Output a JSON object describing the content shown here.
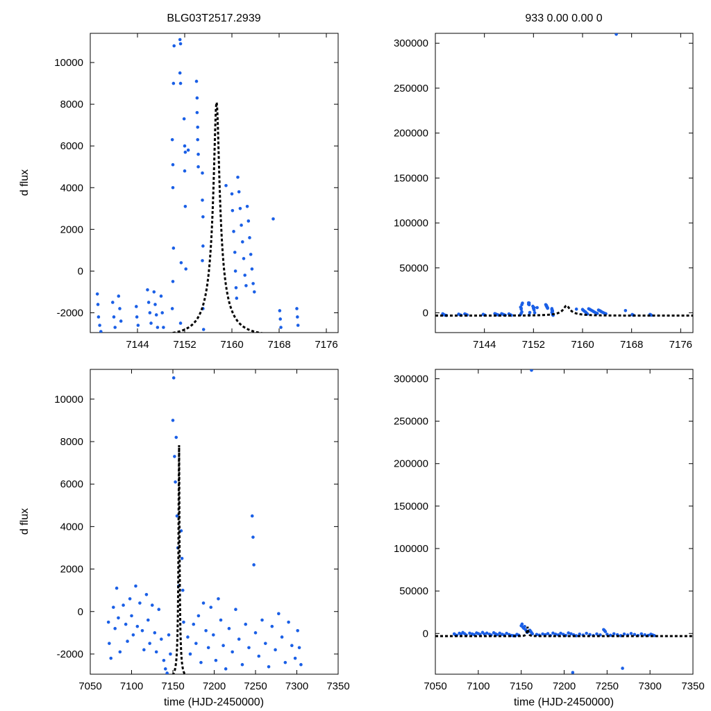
{
  "chart_data": [
    {
      "type": "scatter",
      "panel": "top-left",
      "title": "BLG03T2517.2939",
      "xlabel": "",
      "ylabel": "d flux",
      "xlim": [
        7136,
        7178
      ],
      "ylim": [
        -2950,
        11400
      ],
      "xticks": [
        7144,
        7152,
        7160,
        7168,
        7176
      ],
      "yticks": [
        -2000,
        0,
        2000,
        4000,
        6000,
        8000,
        10000
      ],
      "model": {
        "t0": 7157.4,
        "u0": 0.105,
        "tE": 4.5,
        "F0": 8100,
        "base": -3100
      },
      "point_color": "#1a5fe6",
      "model_color": "#000000"
    },
    {
      "type": "scatter",
      "panel": "top-right",
      "title": "933   0.00   0.00   0",
      "xlabel": "",
      "ylabel": "",
      "xlim": [
        7136,
        7178
      ],
      "ylim": [
        -22000,
        311000
      ],
      "xticks": [
        7144,
        7152,
        7160,
        7168,
        7176
      ],
      "yticks": [
        0,
        50000,
        100000,
        150000,
        200000,
        250000,
        300000
      ],
      "model": {
        "t0": 7157.4,
        "u0": 0.105,
        "tE": 4.5,
        "F0": 8100,
        "base": -3100
      },
      "point_color": "#1a5fe6",
      "model_color": "#000000"
    },
    {
      "type": "scatter",
      "panel": "bottom-left",
      "title": "",
      "xlabel": "time (HJD-2450000)",
      "ylabel": "d flux",
      "xlim": [
        7050,
        7350
      ],
      "ylim": [
        -2950,
        11400
      ],
      "xticks": [
        7050,
        7100,
        7150,
        7200,
        7250,
        7300,
        7350
      ],
      "yticks": [
        -2000,
        0,
        2000,
        4000,
        6000,
        8000,
        10000
      ],
      "model": {
        "t0": 7157.4,
        "u0": 0.105,
        "tE": 4.5,
        "F0": 8100,
        "base": -3100
      },
      "point_color": "#1a5fe6",
      "model_color": "#000000"
    },
    {
      "type": "scatter",
      "panel": "bottom-right",
      "title": "",
      "xlabel": "time (HJD-2450000)",
      "ylabel": "",
      "xlim": [
        7050,
        7350
      ],
      "ylim": [
        -48000,
        311000
      ],
      "xticks": [
        7050,
        7100,
        7150,
        7200,
        7250,
        7300,
        7350
      ],
      "yticks": [
        0,
        50000,
        100000,
        150000,
        200000,
        250000,
        300000
      ],
      "model": {
        "t0": 7157.4,
        "u0": 0.105,
        "tE": 4.5,
        "F0": 8100,
        "base": -3100
      },
      "point_color": "#1a5fe6",
      "model_color": "#000000"
    }
  ],
  "observations_zoom": [
    [
      7137.2,
      -1100
    ],
    [
      7137.3,
      -1600
    ],
    [
      7137.4,
      -2200
    ],
    [
      7137.6,
      -2600
    ],
    [
      7137.8,
      -2900
    ],
    [
      7139.8,
      -1500
    ],
    [
      7140.0,
      -2200
    ],
    [
      7140.2,
      -2700
    ],
    [
      7140.8,
      -1200
    ],
    [
      7141.0,
      -1800
    ],
    [
      7141.2,
      -2400
    ],
    [
      7143.8,
      -1700
    ],
    [
      7143.9,
      -2200
    ],
    [
      7144.1,
      -2600
    ],
    [
      7145.7,
      -900
    ],
    [
      7145.9,
      -1500
    ],
    [
      7146.1,
      -2000
    ],
    [
      7146.3,
      -2500
    ],
    [
      7146.8,
      -1000
    ],
    [
      7147.0,
      -1600
    ],
    [
      7147.2,
      -2100
    ],
    [
      7147.4,
      -2700
    ],
    [
      7148.0,
      -1200
    ],
    [
      7148.2,
      -2000
    ],
    [
      7148.4,
      -2700
    ],
    [
      7149.9,
      6300
    ],
    [
      7150.0,
      5100
    ],
    [
      7150.0,
      4000
    ],
    [
      7150.1,
      9000
    ],
    [
      7150.2,
      10800
    ],
    [
      7150.1,
      1100
    ],
    [
      7150.0,
      -500
    ],
    [
      7149.9,
      -1800
    ],
    [
      7151.2,
      11100
    ],
    [
      7151.3,
      10900
    ],
    [
      7151.2,
      9500
    ],
    [
      7151.3,
      9000
    ],
    [
      7151.4,
      400
    ],
    [
      7151.3,
      -2500
    ],
    [
      7151.9,
      7300
    ],
    [
      7152.0,
      6000
    ],
    [
      7152.1,
      5700
    ],
    [
      7152.0,
      4800
    ],
    [
      7152.1,
      3100
    ],
    [
      7152.2,
      100
    ],
    [
      7152.6,
      5800
    ],
    [
      7154.1,
      8300
    ],
    [
      7154.1,
      7600
    ],
    [
      7154.2,
      6900
    ],
    [
      7154.2,
      6300
    ],
    [
      7154.3,
      5600
    ],
    [
      7154.3,
      5000
    ],
    [
      7154.0,
      9100
    ],
    [
      7155.0,
      4700
    ],
    [
      7155.0,
      3400
    ],
    [
      7155.1,
      2600
    ],
    [
      7155.1,
      1200
    ],
    [
      7155.1,
      -1800
    ],
    [
      7155.2,
      -2800
    ],
    [
      7155.0,
      500
    ],
    [
      7159.0,
      4100
    ],
    [
      7160.0,
      3700
    ],
    [
      7160.1,
      2900
    ],
    [
      7160.3,
      1900
    ],
    [
      7160.5,
      900
    ],
    [
      7160.6,
      0
    ],
    [
      7160.7,
      -800
    ],
    [
      7160.8,
      -1300
    ],
    [
      7161.0,
      4500
    ],
    [
      7161.2,
      3800
    ],
    [
      7161.4,
      3000
    ],
    [
      7161.6,
      2200
    ],
    [
      7161.8,
      1400
    ],
    [
      7162.0,
      600
    ],
    [
      7162.2,
      -200
    ],
    [
      7162.4,
      -700
    ],
    [
      7162.6,
      3100
    ],
    [
      7162.8,
      2400
    ],
    [
      7163.0,
      1600
    ],
    [
      7163.2,
      800
    ],
    [
      7163.4,
      100
    ],
    [
      7163.6,
      -600
    ],
    [
      7163.8,
      -1000
    ],
    [
      7167.0,
      2500
    ],
    [
      7168.1,
      -1900
    ],
    [
      7168.2,
      -2300
    ],
    [
      7168.3,
      -2700
    ],
    [
      7171.0,
      -1800
    ],
    [
      7171.1,
      -2200
    ],
    [
      7171.2,
      -2600
    ]
  ],
  "observations_full": [
    [
      7072,
      -500
    ],
    [
      7073,
      -1500
    ],
    [
      7075,
      -2200
    ],
    [
      7078,
      200
    ],
    [
      7080,
      -800
    ],
    [
      7082,
      1100
    ],
    [
      7084,
      -300
    ],
    [
      7086,
      -1900
    ],
    [
      7090,
      300
    ],
    [
      7093,
      -600
    ],
    [
      7095,
      -1400
    ],
    [
      7098,
      600
    ],
    [
      7100,
      -200
    ],
    [
      7102,
      -1100
    ],
    [
      7105,
      1200
    ],
    [
      7107,
      -700
    ],
    [
      7110,
      400
    ],
    [
      7113,
      -900
    ],
    [
      7115,
      -1800
    ],
    [
      7118,
      800
    ],
    [
      7120,
      -400
    ],
    [
      7122,
      -1500
    ],
    [
      7125,
      300
    ],
    [
      7128,
      -1000
    ],
    [
      7130,
      -1900
    ],
    [
      7133,
      100
    ],
    [
      7136,
      -1300
    ],
    [
      7139,
      -2300
    ],
    [
      7141,
      -2700
    ],
    [
      7143,
      -2900
    ],
    [
      7145,
      -1100
    ],
    [
      7147,
      -2000
    ],
    [
      7150,
      9000
    ],
    [
      7151,
      11000
    ],
    [
      7152,
      7300
    ],
    [
      7153,
      6100
    ],
    [
      7154,
      8200
    ],
    [
      7155,
      4500
    ],
    [
      7156,
      3000
    ],
    [
      7157,
      1200
    ],
    [
      7160,
      3800
    ],
    [
      7161,
      2500
    ],
    [
      7162,
      1000
    ],
    [
      7163,
      -500
    ],
    [
      7168,
      -1200
    ],
    [
      7171,
      -2000
    ],
    [
      7175,
      -600
    ],
    [
      7178,
      -1500
    ],
    [
      7181,
      -200
    ],
    [
      7184,
      -2400
    ],
    [
      7187,
      400
    ],
    [
      7190,
      -900
    ],
    [
      7193,
      -1700
    ],
    [
      7196,
      200
    ],
    [
      7199,
      -1100
    ],
    [
      7202,
      -2300
    ],
    [
      7205,
      600
    ],
    [
      7208,
      -400
    ],
    [
      7211,
      -1600
    ],
    [
      7214,
      -2700
    ],
    [
      7218,
      -800
    ],
    [
      7222,
      -1900
    ],
    [
      7226,
      100
    ],
    [
      7230,
      -1300
    ],
    [
      7234,
      -2500
    ],
    [
      7238,
      -600
    ],
    [
      7242,
      -1700
    ],
    [
      7246,
      4500
    ],
    [
      7247,
      3500
    ],
    [
      7248,
      2200
    ],
    [
      7250,
      -1000
    ],
    [
      7254,
      -2100
    ],
    [
      7258,
      -400
    ],
    [
      7262,
      -1500
    ],
    [
      7266,
      -2600
    ],
    [
      7270,
      -700
    ],
    [
      7274,
      -1800
    ],
    [
      7278,
      -100
    ],
    [
      7282,
      -1200
    ],
    [
      7286,
      -2400
    ],
    [
      7290,
      -500
    ],
    [
      7294,
      -1600
    ],
    [
      7298,
      -2200
    ],
    [
      7301,
      -900
    ],
    [
      7303,
      -1700
    ],
    [
      7305,
      -2500
    ]
  ]
}
